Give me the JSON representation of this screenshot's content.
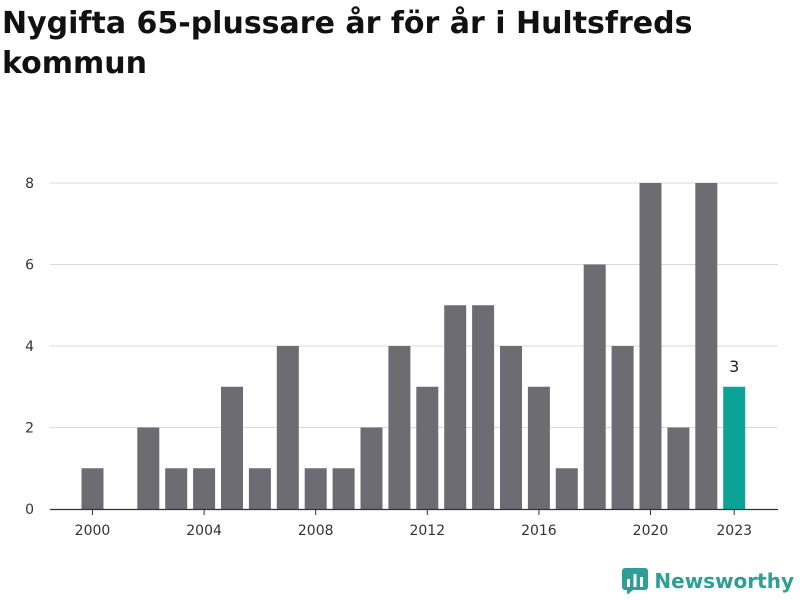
{
  "title": "Nygifta 65-plussare år för år i Hultsfreds kommun",
  "brand": {
    "name": "Newsworthy",
    "icon": "newsworthy-logo-icon",
    "color": "#2f9e96"
  },
  "colors": {
    "bar": "#6d6c72",
    "highlight": "#0ba398",
    "grid": "#d9d9d9",
    "axis": "#333333"
  },
  "chart_data": {
    "type": "bar",
    "title": "Nygifta 65-plussare år för år i Hultsfreds kommun",
    "xlabel": "",
    "ylabel": "",
    "categories": [
      "2000",
      "2001",
      "2002",
      "2003",
      "2004",
      "2005",
      "2006",
      "2007",
      "2008",
      "2009",
      "2010",
      "2011",
      "2012",
      "2013",
      "2014",
      "2015",
      "2016",
      "2017",
      "2018",
      "2019",
      "2020",
      "2021",
      "2022",
      "2023"
    ],
    "values": [
      1,
      0,
      2,
      1,
      1,
      3,
      1,
      4,
      1,
      1,
      2,
      4,
      3,
      5,
      5,
      4,
      3,
      1,
      6,
      4,
      8,
      2,
      8,
      3
    ],
    "ylim": [
      0,
      8
    ],
    "yticks": [
      0,
      2,
      4,
      6,
      8
    ],
    "xticks": [
      "2000",
      "2004",
      "2008",
      "2012",
      "2016",
      "2020",
      "2023"
    ],
    "highlight_category": "2023",
    "annotations": [
      {
        "category": "2023",
        "text": "3"
      }
    ],
    "grid": true
  }
}
